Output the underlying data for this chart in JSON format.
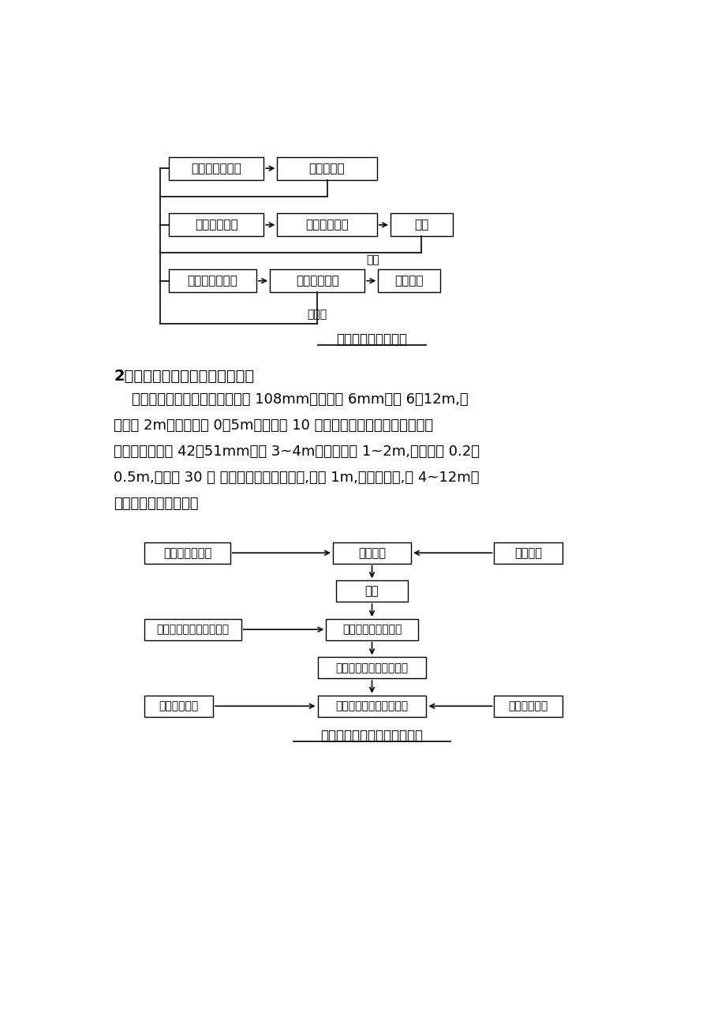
{
  "bg_color": "#ffffff",
  "text_color": "#000000",
  "box_color": "#ffffff",
  "box_edge": "#000000",
  "section_title": "2、管棚、小导管及水平注浆施工",
  "para_lines": [
    "    管棚在上半断面设置，钢管直径 108mm，管壁厚 6mm，长 6～12m,搭",
    "接长度 2m，环向间距 0。5m，外插角 10 度；小导管拱墙均设置或仅上部",
    "设置，钢管直径 42～51mm，长 3~4m，搭接长度 1~2m,环向间距 0.2～",
    "0.5m,外插角 30 度 水平注浆孔全断面设置,间距 1m,梅花型布置,长 4~12m。",
    "注浆工艺流程见下图。"
  ],
  "chart1_title": "注浆施工工艺流程图",
  "chart2_title": "管棚、小导管施工工艺流程图"
}
